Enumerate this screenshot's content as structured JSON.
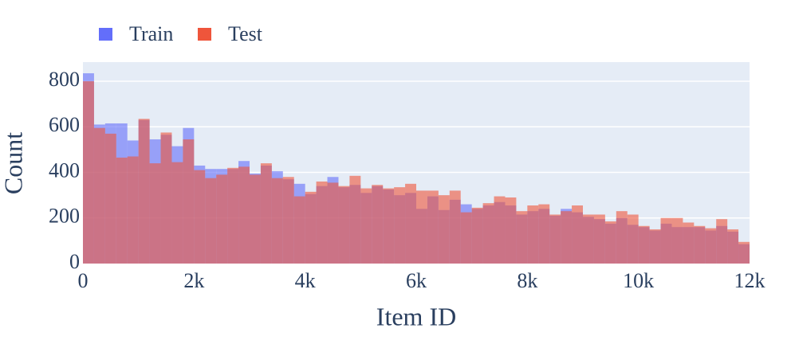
{
  "chart_data": {
    "type": "histogram",
    "xlabel": "Item ID",
    "ylabel": "Count",
    "bins": [
      0,
      200,
      400,
      600,
      800,
      1000,
      1200,
      1400,
      1600,
      1800,
      2000,
      2200,
      2400,
      2600,
      2800,
      3000,
      3200,
      3400,
      3600,
      3800,
      4000,
      4200,
      4400,
      4600,
      4800,
      5000,
      5200,
      5400,
      5600,
      5800,
      6000,
      6200,
      6400,
      6600,
      6800,
      7000,
      7200,
      7400,
      7600,
      7800,
      8000,
      8200,
      8400,
      8600,
      8800,
      9000,
      9200,
      9400,
      9600,
      9800,
      10000,
      10200,
      10400,
      10600,
      10800,
      11000,
      11200,
      11400,
      11600,
      11800,
      12000
    ],
    "series": [
      {
        "name": "Train",
        "color": "#636efa",
        "values": [
          835,
          610,
          615,
          615,
          540,
          630,
          545,
          565,
          515,
          595,
          430,
          415,
          415,
          415,
          450,
          395,
          430,
          405,
          370,
          350,
          305,
          340,
          380,
          335,
          345,
          310,
          340,
          325,
          300,
          310,
          240,
          295,
          235,
          280,
          260,
          240,
          255,
          270,
          255,
          215,
          230,
          240,
          210,
          240,
          225,
          205,
          195,
          175,
          200,
          170,
          160,
          145,
          175,
          160,
          160,
          160,
          145,
          165,
          140,
          85
        ]
      },
      {
        "name": "Test",
        "color": "#ef553b",
        "values": [
          800,
          595,
          570,
          465,
          470,
          635,
          440,
          575,
          445,
          545,
          410,
          375,
          390,
          420,
          425,
          390,
          440,
          375,
          380,
          295,
          315,
          360,
          355,
          340,
          385,
          330,
          345,
          330,
          335,
          350,
          320,
          320,
          300,
          320,
          225,
          245,
          265,
          295,
          290,
          230,
          255,
          260,
          215,
          230,
          255,
          215,
          215,
          185,
          230,
          215,
          165,
          150,
          200,
          200,
          180,
          165,
          155,
          195,
          150,
          95
        ]
      }
    ],
    "xlim": [
      0,
      12000
    ],
    "xticks": [
      0,
      {
        "value": 2000,
        "label": "2k"
      },
      {
        "value": 4000,
        "label": "4k"
      },
      {
        "value": 6000,
        "label": "6k"
      },
      {
        "value": 8000,
        "label": "8k"
      },
      {
        "value": 10000,
        "label": "10k"
      },
      {
        "value": 12000,
        "label": "12k"
      }
    ],
    "ylim": [
      0,
      884
    ],
    "yticks": [
      0,
      200,
      400,
      600,
      800
    ],
    "grid": true
  }
}
